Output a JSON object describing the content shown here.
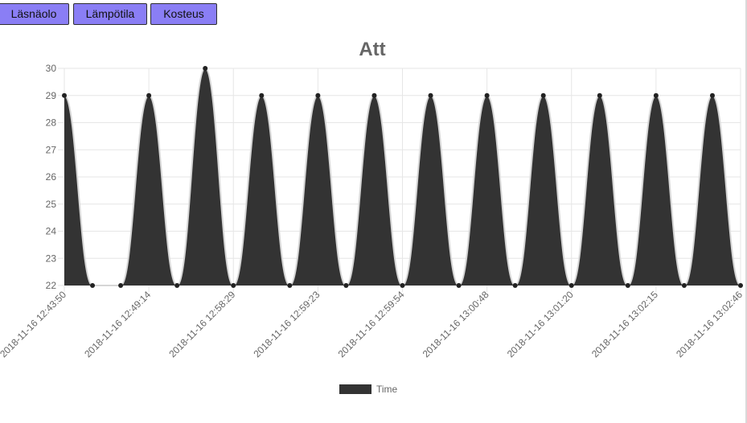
{
  "buttons": [
    {
      "label": "Läsnäolo"
    },
    {
      "label": "Lämpötila"
    },
    {
      "label": "Kosteus"
    }
  ],
  "colors": {
    "button_bg": "#8a7ef5",
    "series_fill": "#333333",
    "series_line": "#d6d6d6",
    "grid": "#e6e6e6",
    "text": "#666666"
  },
  "chart_data": {
    "type": "area",
    "title": "Att",
    "xlabel": "",
    "ylabel": "",
    "ylim": [
      22,
      30
    ],
    "yticks": [
      22,
      23,
      24,
      25,
      26,
      27,
      28,
      29,
      30
    ],
    "x_tick_labels": [
      "2018-11-16 12:43:50",
      "2018-11-16 12:49:14",
      "2018-11-16 12:58:29",
      "2018-11-16 12:59:23",
      "2018-11-16 12:59:54",
      "2018-11-16 13:00:48",
      "2018-11-16 13:01:20",
      "2018-11-16 13:02:15",
      "2018-11-16 13:02:46"
    ],
    "grid": true,
    "legend": {
      "position": "bottom"
    },
    "series": [
      {
        "name": "Time",
        "values": [
          29,
          22,
          22,
          29,
          22,
          30,
          22,
          29,
          22,
          29,
          22,
          29,
          22,
          29,
          22,
          29,
          22,
          29,
          22,
          29,
          22,
          29,
          22,
          29,
          22
        ]
      }
    ]
  }
}
